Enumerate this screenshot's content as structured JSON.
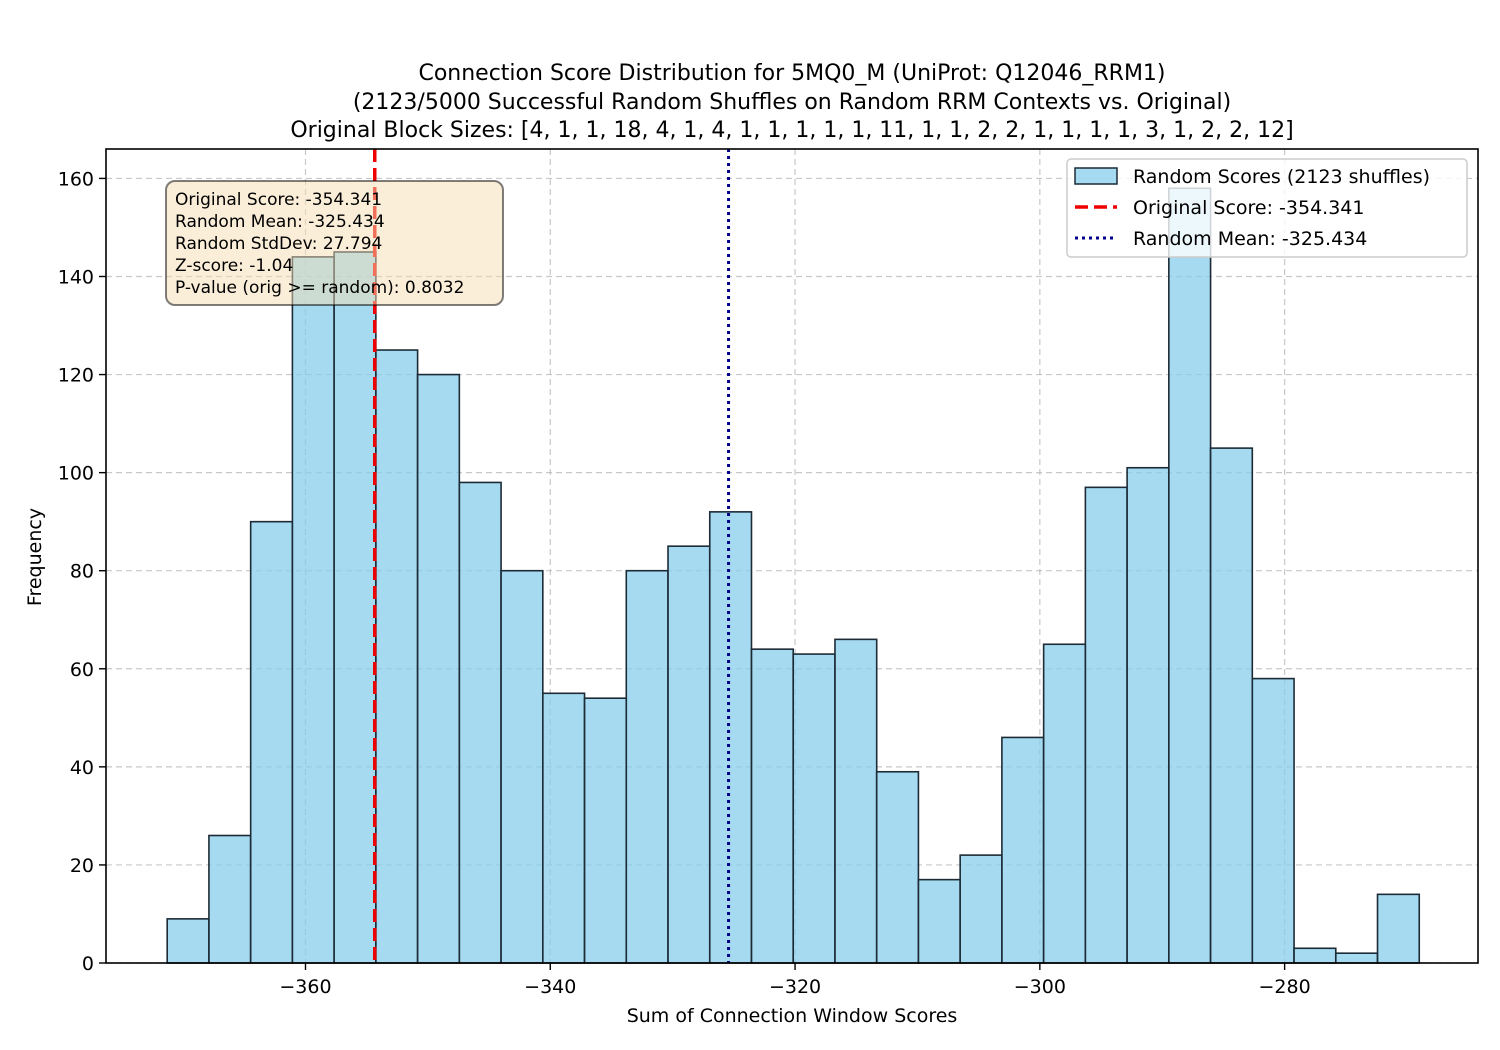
{
  "chart_data": {
    "type": "bar",
    "title_lines": [
      "Connection Score Distribution for 5MQ0_M (UniProt: Q12046_RRM1)",
      "(2123/5000 Successful Random Shuffles on Random RRM Contexts vs. Original)",
      "Original Block Sizes: [4, 1, 1, 18, 4, 1, 4, 1, 1, 1, 1, 1, 11, 1, 1, 2, 2, 1, 1, 1, 1, 3, 1, 2, 2, 12]"
    ],
    "xlabel": "Sum of Connection Window Scores",
    "ylabel": "Frequency",
    "xlim": [
      -376.3,
      -264.2
    ],
    "ylim": [
      0,
      166
    ],
    "xticks": [
      -360,
      -340,
      -320,
      -300,
      -280
    ],
    "xtick_labels": [
      "−360",
      "−340",
      "−320",
      "−300",
      "−280"
    ],
    "yticks": [
      0,
      20,
      40,
      60,
      80,
      100,
      120,
      140,
      160
    ],
    "grid": true,
    "bins": {
      "start": -371.3,
      "width": 3.41,
      "counts": [
        9,
        26,
        90,
        144,
        145,
        125,
        120,
        98,
        80,
        55,
        54,
        80,
        85,
        92,
        64,
        63,
        66,
        39,
        17,
        22,
        46,
        65,
        97,
        101,
        158,
        105,
        58,
        3,
        2,
        14
      ]
    },
    "bar_color": "#87ceeb",
    "bar_edge_color": "#1c2b36",
    "original_score": -354.341,
    "random_mean": -325.434,
    "original_line_color": "#ee0000",
    "mean_line_color": "#00008b",
    "legend": {
      "placement": "top-right",
      "entries": [
        "Random Scores (2123 shuffles)",
        "Original Score: -354.341",
        "Random Mean: -325.434"
      ]
    },
    "stats_box": {
      "placement": "top-left",
      "lines": [
        "Original Score: -354.341",
        "Random Mean: -325.434",
        "Random StdDev: 27.794",
        "Z-score: -1.04",
        "P-value (orig >= random): 0.8032"
      ],
      "background": "#f5deb3"
    }
  }
}
